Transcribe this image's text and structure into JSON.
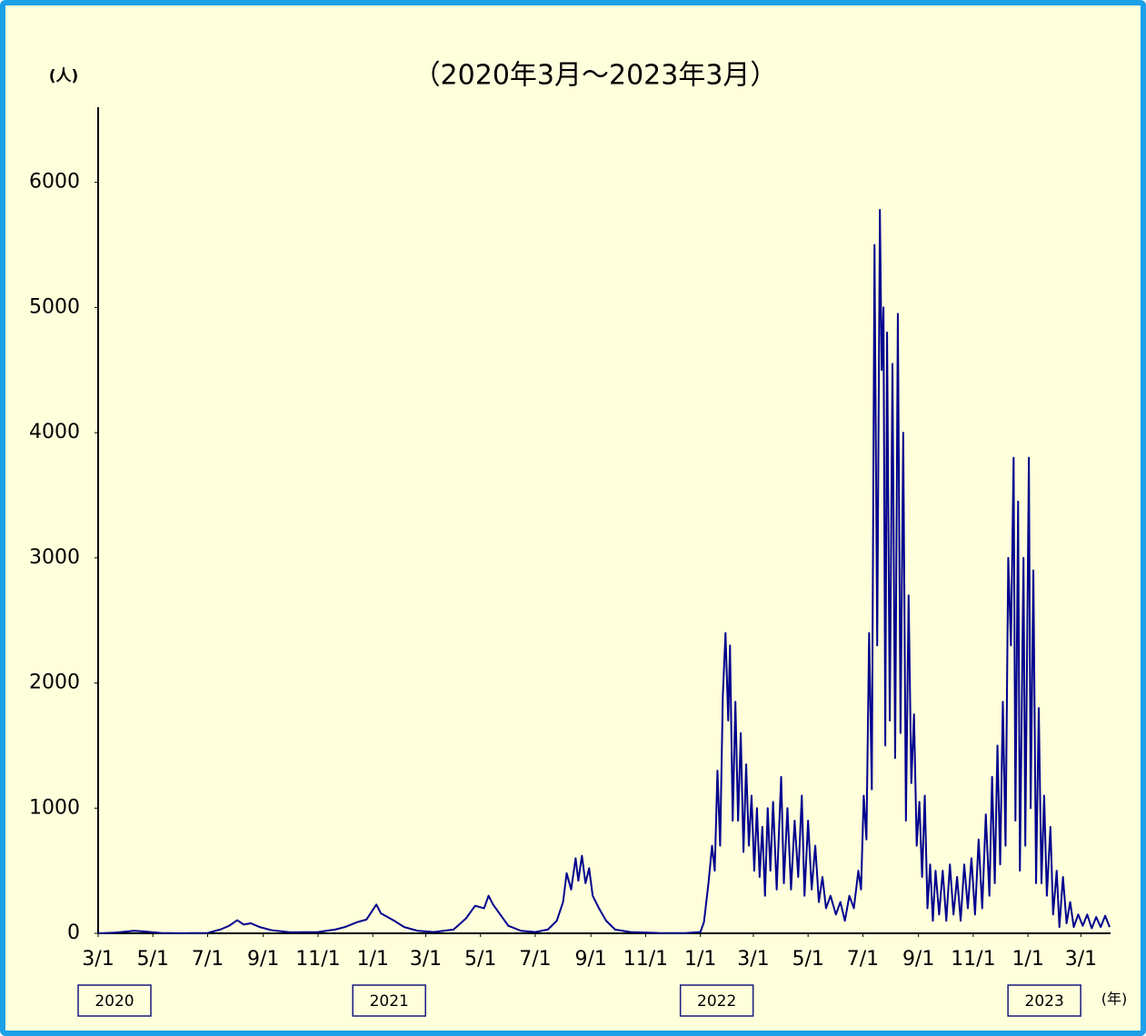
{
  "chart_data": {
    "type": "line",
    "title": "（2020年3月～2023年3月）",
    "y_unit": "(人)",
    "x_unit": "(年)",
    "color": "#00008f",
    "ylim": [
      0,
      6600
    ],
    "yticks": [
      0,
      1000,
      2000,
      3000,
      4000,
      5000,
      6000
    ],
    "xlim": [
      "2020-03-01",
      "2023-04-03"
    ],
    "xticks": [
      {
        "value": "2020-03-01",
        "label": "3/1"
      },
      {
        "value": "2020-05-01",
        "label": "5/1"
      },
      {
        "value": "2020-07-01",
        "label": "7/1"
      },
      {
        "value": "2020-09-01",
        "label": "9/1"
      },
      {
        "value": "2020-11-01",
        "label": "11/1"
      },
      {
        "value": "2021-01-01",
        "label": "1/1"
      },
      {
        "value": "2021-03-01",
        "label": "3/1"
      },
      {
        "value": "2021-05-01",
        "label": "5/1"
      },
      {
        "value": "2021-07-01",
        "label": "7/1"
      },
      {
        "value": "2021-09-01",
        "label": "9/1"
      },
      {
        "value": "2021-11-01",
        "label": "11/1"
      },
      {
        "value": "2022-01-01",
        "label": "1/1"
      },
      {
        "value": "2022-03-01",
        "label": "3/1"
      },
      {
        "value": "2022-05-01",
        "label": "5/1"
      },
      {
        "value": "2022-07-01",
        "label": "7/1"
      },
      {
        "value": "2022-09-01",
        "label": "9/1"
      },
      {
        "value": "2022-11-01",
        "label": "11/1"
      },
      {
        "value": "2023-01-01",
        "label": "1/1"
      },
      {
        "value": "2023-03-01",
        "label": "3/1"
      }
    ],
    "year_labels": [
      {
        "value": "2020-03-01",
        "label": "2020"
      },
      {
        "value": "2021-01-01",
        "label": "2021"
      },
      {
        "value": "2022-01-01",
        "label": "2022"
      },
      {
        "value": "2023-01-01",
        "label": "2023"
      }
    ],
    "x": [
      "2020-03-01",
      "2020-03-20",
      "2020-04-10",
      "2020-04-20",
      "2020-05-10",
      "2020-06-01",
      "2020-07-01",
      "2020-07-15",
      "2020-07-25",
      "2020-08-03",
      "2020-08-10",
      "2020-08-18",
      "2020-08-28",
      "2020-09-10",
      "2020-10-01",
      "2020-11-01",
      "2020-11-20",
      "2020-12-01",
      "2020-12-15",
      "2020-12-25",
      "2021-01-05",
      "2021-01-10",
      "2021-01-15",
      "2021-01-25",
      "2021-02-05",
      "2021-02-20",
      "2021-03-10",
      "2021-04-01",
      "2021-04-15",
      "2021-04-25",
      "2021-05-05",
      "2021-05-10",
      "2021-05-15",
      "2021-05-22",
      "2021-06-01",
      "2021-06-15",
      "2021-07-01",
      "2021-07-15",
      "2021-07-25",
      "2021-08-01",
      "2021-08-05",
      "2021-08-10",
      "2021-08-15",
      "2021-08-18",
      "2021-08-22",
      "2021-08-26",
      "2021-08-30",
      "2021-09-03",
      "2021-09-10",
      "2021-09-18",
      "2021-09-28",
      "2021-10-15",
      "2021-11-15",
      "2021-12-15",
      "2022-01-01",
      "2022-01-05",
      "2022-01-10",
      "2022-01-14",
      "2022-01-17",
      "2022-01-20",
      "2022-01-23",
      "2022-01-26",
      "2022-01-29",
      "2022-02-01",
      "2022-02-03",
      "2022-02-06",
      "2022-02-09",
      "2022-02-12",
      "2022-02-15",
      "2022-02-18",
      "2022-02-21",
      "2022-02-24",
      "2022-02-27",
      "2022-03-02",
      "2022-03-05",
      "2022-03-08",
      "2022-03-11",
      "2022-03-14",
      "2022-03-17",
      "2022-03-20",
      "2022-03-23",
      "2022-03-27",
      "2022-04-01",
      "2022-04-04",
      "2022-04-08",
      "2022-04-12",
      "2022-04-16",
      "2022-04-20",
      "2022-04-24",
      "2022-04-27",
      "2022-05-01",
      "2022-05-05",
      "2022-05-09",
      "2022-05-13",
      "2022-05-17",
      "2022-05-21",
      "2022-05-26",
      "2022-06-01",
      "2022-06-06",
      "2022-06-11",
      "2022-06-16",
      "2022-06-21",
      "2022-06-26",
      "2022-06-29",
      "2022-07-02",
      "2022-07-05",
      "2022-07-08",
      "2022-07-11",
      "2022-07-14",
      "2022-07-17",
      "2022-07-20",
      "2022-07-22",
      "2022-07-24",
      "2022-07-26",
      "2022-07-28",
      "2022-07-31",
      "2022-08-03",
      "2022-08-06",
      "2022-08-09",
      "2022-08-12",
      "2022-08-15",
      "2022-08-18",
      "2022-08-21",
      "2022-08-24",
      "2022-08-27",
      "2022-08-30",
      "2022-09-02",
      "2022-09-05",
      "2022-09-08",
      "2022-09-11",
      "2022-09-14",
      "2022-09-17",
      "2022-09-20",
      "2022-09-24",
      "2022-09-28",
      "2022-10-02",
      "2022-10-06",
      "2022-10-10",
      "2022-10-14",
      "2022-10-18",
      "2022-10-22",
      "2022-10-26",
      "2022-10-30",
      "2022-11-03",
      "2022-11-07",
      "2022-11-11",
      "2022-11-15",
      "2022-11-19",
      "2022-11-22",
      "2022-11-25",
      "2022-11-28",
      "2022-12-01",
      "2022-12-04",
      "2022-12-07",
      "2022-12-10",
      "2022-12-13",
      "2022-12-16",
      "2022-12-18",
      "2022-12-21",
      "2022-12-23",
      "2022-12-27",
      "2022-12-29",
      "2023-01-02",
      "2023-01-04",
      "2023-01-07",
      "2023-01-10",
      "2023-01-13",
      "2023-01-16",
      "2023-01-19",
      "2023-01-22",
      "2023-01-26",
      "2023-01-29",
      "2023-02-02",
      "2023-02-05",
      "2023-02-09",
      "2023-02-13",
      "2023-02-17",
      "2023-02-21",
      "2023-02-26",
      "2023-03-03",
      "2023-03-08",
      "2023-03-13",
      "2023-03-18",
      "2023-03-23",
      "2023-03-28",
      "2023-04-02"
    ],
    "values": [
      0,
      5,
      20,
      15,
      3,
      1,
      3,
      30,
      60,
      105,
      70,
      80,
      50,
      25,
      8,
      10,
      30,
      50,
      90,
      110,
      230,
      160,
      140,
      100,
      50,
      20,
      10,
      30,
      120,
      220,
      200,
      300,
      230,
      160,
      60,
      20,
      10,
      30,
      100,
      250,
      480,
      350,
      600,
      420,
      620,
      400,
      520,
      300,
      200,
      100,
      30,
      10,
      3,
      2,
      10,
      90,
      400,
      700,
      500,
      1300,
      700,
      1900,
      2400,
      1700,
      2300,
      900,
      1850,
      900,
      1600,
      650,
      1350,
      700,
      1100,
      500,
      1000,
      450,
      850,
      300,
      1000,
      500,
      1050,
      350,
      1250,
      400,
      1000,
      350,
      900,
      450,
      1100,
      300,
      900,
      350,
      700,
      250,
      450,
      200,
      300,
      150,
      250,
      100,
      300,
      200,
      500,
      350,
      1100,
      750,
      2400,
      1150,
      5500,
      2300,
      5780,
      4500,
      5000,
      1500,
      4800,
      1700,
      4550,
      1400,
      4950,
      1600,
      4000,
      900,
      2700,
      1200,
      1750,
      700,
      1050,
      450,
      1100,
      200,
      550,
      100,
      500,
      150,
      500,
      100,
      550,
      150,
      450,
      100,
      550,
      200,
      600,
      150,
      750,
      200,
      950,
      300,
      1250,
      400,
      1500,
      550,
      1850,
      700,
      3000,
      2300,
      3800,
      900,
      3450,
      500,
      3000,
      700,
      3800,
      1000,
      2900,
      400,
      1800,
      400,
      1100,
      300,
      850,
      150,
      500,
      50,
      450,
      80,
      250,
      50,
      150,
      60,
      150,
      40,
      130,
      50,
      140,
      50
    ]
  }
}
